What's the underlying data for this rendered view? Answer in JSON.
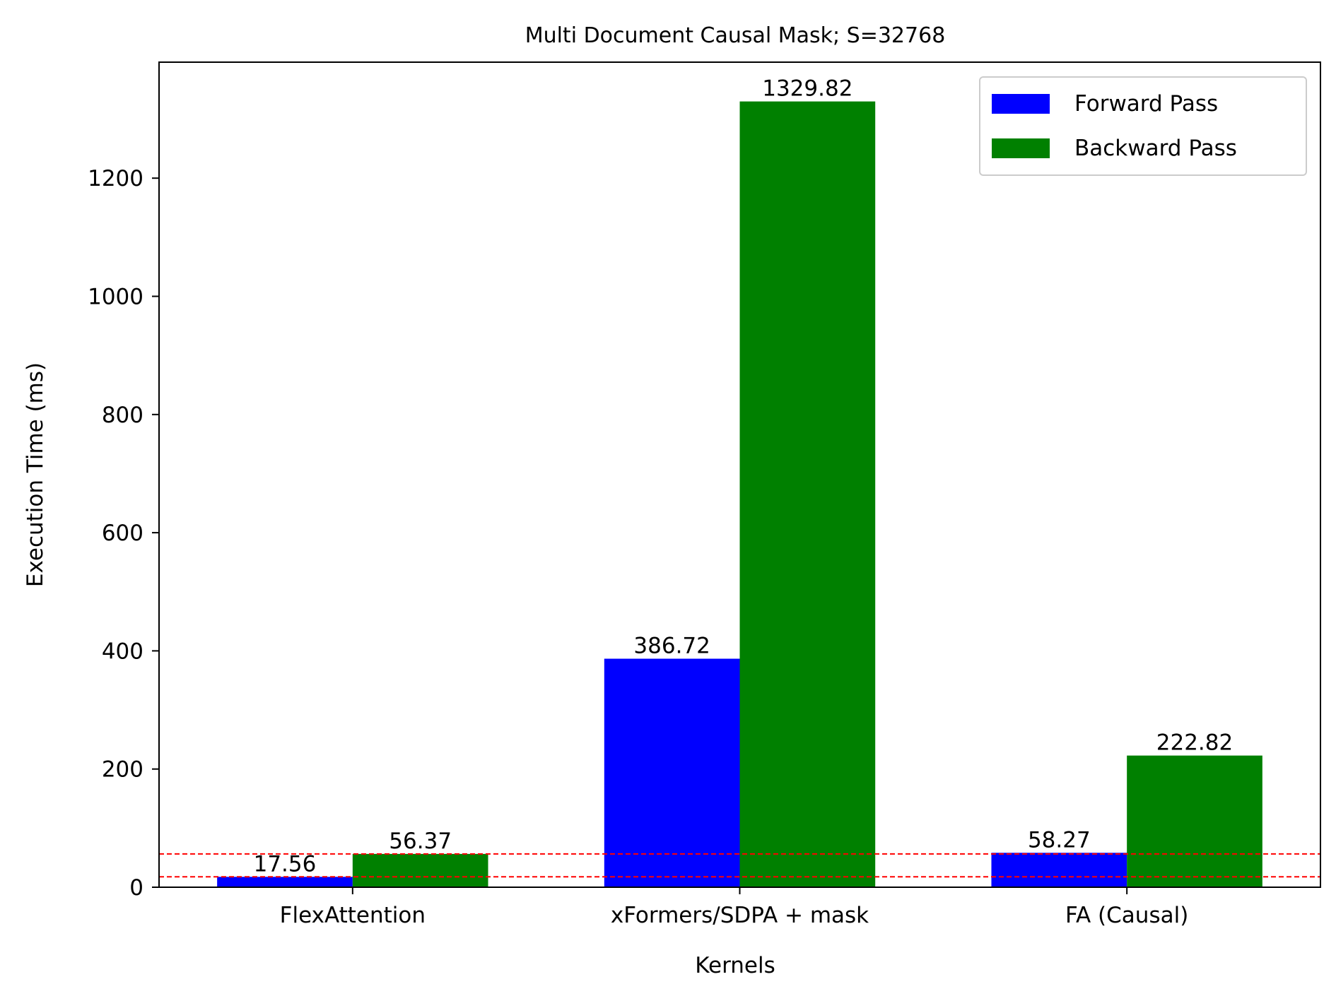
{
  "chart_data": {
    "type": "bar",
    "title": "Multi Document Causal Mask; S=32768",
    "xlabel": "Kernels",
    "ylabel": "Execution Time (ms)",
    "categories": [
      "FlexAttention",
      "xFormers/SDPA + mask",
      "FA (Causal)"
    ],
    "series": [
      {
        "name": "Forward Pass",
        "values": [
          17.56,
          386.72,
          58.27
        ],
        "labels": [
          "17.56",
          "386.72",
          "58.27"
        ],
        "color": "#0000ff"
      },
      {
        "name": "Backward Pass",
        "values": [
          56.37,
          1329.82,
          222.82
        ],
        "labels": [
          "56.37",
          "1329.82",
          "222.82"
        ],
        "color": "#008000"
      }
    ],
    "ylim": [
      0,
      1396.31
    ],
    "yticks": [
      0,
      200,
      400,
      600,
      800,
      1000,
      1200
    ],
    "reference_lines": [
      {
        "value": 17.56,
        "style": "dashed",
        "color": "#ff0000"
      },
      {
        "value": 56.37,
        "style": "dashed",
        "color": "#ff0000"
      }
    ],
    "grid": false,
    "legend_position": "top-right"
  }
}
